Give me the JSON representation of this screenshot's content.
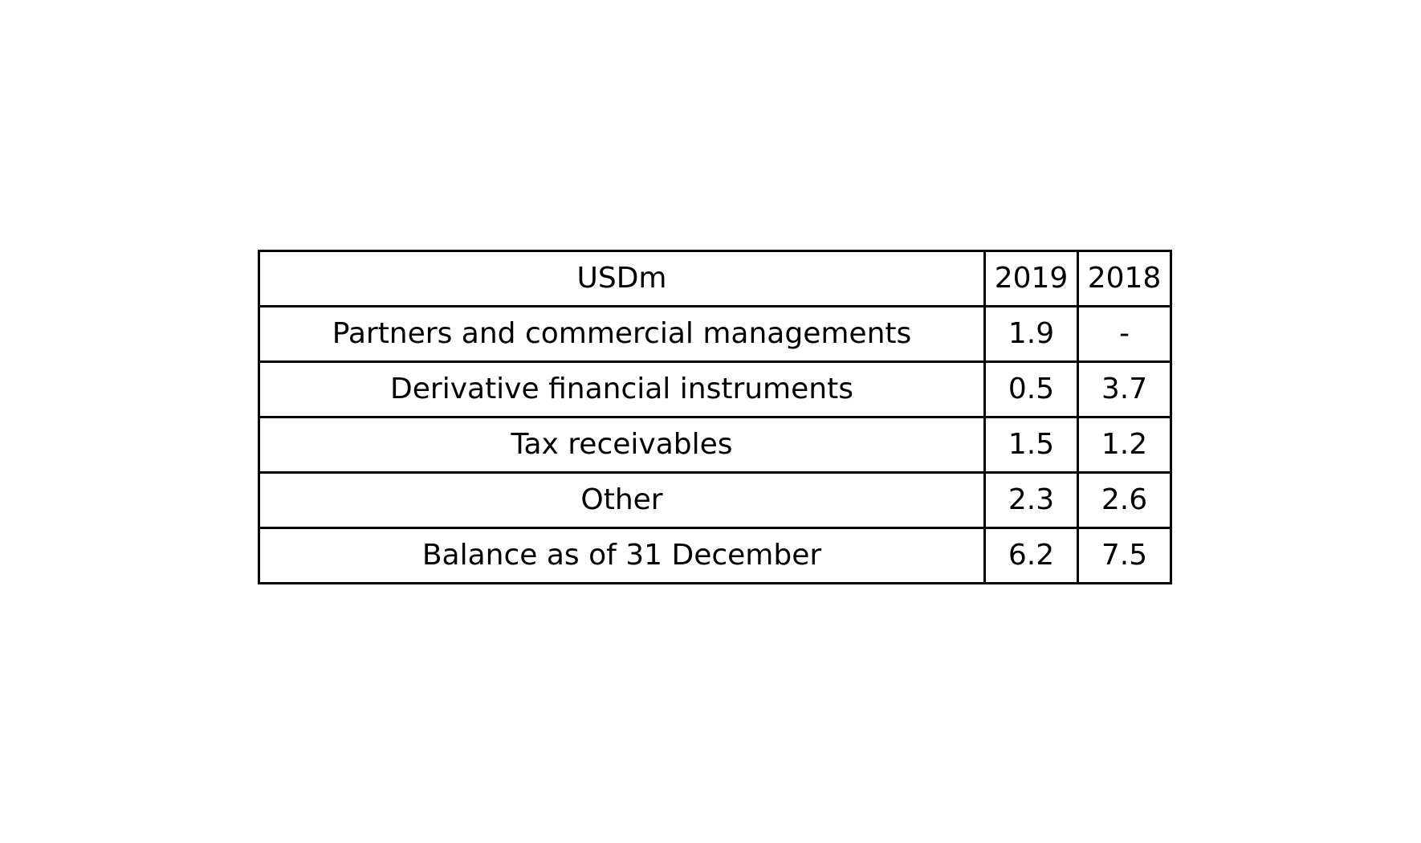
{
  "chart_data": {
    "type": "table",
    "columns": [
      "USDm",
      "2019",
      "2018"
    ],
    "rows": [
      [
        "Partners and commercial managements",
        "1.9",
        "-"
      ],
      [
        "Derivative financial instruments",
        "0.5",
        "3.7"
      ],
      [
        "Tax receivables",
        "1.5",
        "1.2"
      ],
      [
        "Other",
        "2.3",
        "2.6"
      ],
      [
        "Balance as of 31 December",
        "6.2",
        "7.5"
      ]
    ]
  }
}
